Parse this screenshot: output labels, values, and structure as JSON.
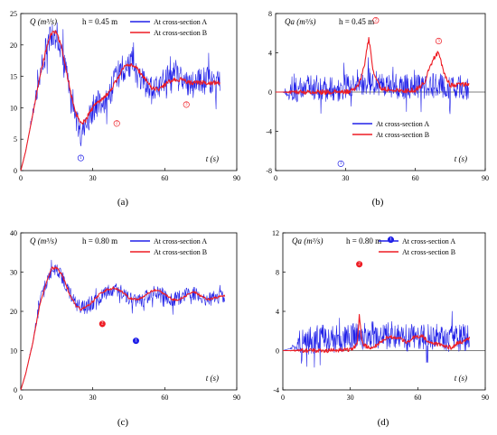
{
  "colors": {
    "A": "#2020e8",
    "B": "#ee1c24",
    "axis": "#000000"
  },
  "chart_data": [
    {
      "panel": "(a)",
      "type": "line",
      "ylabel": "Q (m³/s)",
      "xlabel": "t (s)",
      "annotation": "h = 0.45 m",
      "xlim": [
        0,
        90
      ],
      "ylim": [
        0,
        25
      ],
      "xticks": [
        "0",
        "30",
        "60",
        "90"
      ],
      "yticks": [
        "0",
        "5",
        "10",
        "15",
        "20",
        "25"
      ],
      "legend": {
        "position": "top-right",
        "entries": [
          "At cross-section A",
          "At cross-section B"
        ]
      },
      "series": [
        {
          "name": "At cross-section A",
          "noise": 2.2,
          "x": [
            0,
            2,
            5,
            8,
            11,
            13,
            15,
            17,
            19,
            21,
            23,
            25,
            27,
            29,
            31,
            34,
            37,
            40,
            43,
            46,
            49,
            52,
            55,
            58,
            61,
            64,
            67,
            70,
            73,
            76,
            79,
            83
          ],
          "y": [
            0,
            3,
            9,
            15,
            20,
            22,
            21.5,
            19,
            15,
            11,
            8,
            6,
            7.5,
            9,
            10.5,
            11,
            12,
            15,
            16.5,
            16.5,
            15,
            13.5,
            12.5,
            13.5,
            14.5,
            15,
            14.5,
            13.5,
            14,
            14.5,
            14.5,
            14
          ]
        },
        {
          "name": "At cross-section B",
          "noise": 0.35,
          "x": [
            0,
            2,
            5,
            8,
            11,
            13,
            15,
            17,
            19,
            21,
            23,
            25,
            27,
            29,
            31,
            34,
            37,
            40,
            43,
            46,
            49,
            52,
            55,
            58,
            61,
            64,
            67,
            70,
            73,
            76,
            79,
            83
          ],
          "y": [
            0,
            3,
            9,
            15,
            20,
            22,
            22,
            19.5,
            16,
            12,
            9,
            7.5,
            8,
            9.5,
            10.5,
            11.5,
            12.5,
            14.5,
            16.5,
            17,
            16,
            14.5,
            13,
            13,
            14,
            14.5,
            14.5,
            14,
            14,
            14,
            14,
            14
          ]
        }
      ],
      "markers": [
        {
          "label": "1",
          "x": 25,
          "y": 2,
          "color": "A",
          "filled": false
        },
        {
          "label": "2",
          "x": 40,
          "y": 7.5,
          "color": "B",
          "filled": false
        },
        {
          "label": "3",
          "x": 69,
          "y": 10.5,
          "color": "B",
          "filled": false
        }
      ]
    },
    {
      "panel": "(b)",
      "type": "line",
      "ylabel": "Qa (m³/s)",
      "xlabel": "t (s)",
      "annotation": "h = 0.45 m",
      "xlim": [
        0,
        90
      ],
      "ylim": [
        -8,
        8
      ],
      "xticks": [
        "0",
        "30",
        "60",
        "90"
      ],
      "yticks": [
        "-8",
        "-4",
        "0",
        "4",
        "8"
      ],
      "legend": {
        "position": "bottom-center",
        "entries": [
          "At cross-section A",
          "At cross-section B"
        ]
      },
      "series": [
        {
          "name": "At cross-section A",
          "noise": 1.3,
          "x": [
            0,
            5,
            8,
            10,
            15,
            20,
            25,
            27,
            30,
            35,
            40,
            45,
            50,
            55,
            60,
            65,
            70,
            75,
            80,
            83
          ],
          "y": [
            0,
            0,
            0.1,
            0.4,
            0.5,
            0.4,
            0.2,
            0.2,
            0.6,
            1.0,
            1.0,
            0.8,
            0.6,
            0.5,
            0.5,
            0.6,
            0.7,
            0.6,
            0.5,
            0.4
          ]
        },
        {
          "name": "At cross-section B",
          "noise": 0.25,
          "x": [
            0,
            10,
            20,
            30,
            34,
            36,
            38,
            40,
            42,
            45,
            50,
            55,
            60,
            64,
            66,
            68,
            70,
            72,
            75,
            80,
            83
          ],
          "y": [
            0,
            0,
            0,
            0,
            0.2,
            1.0,
            2.5,
            5.5,
            2.0,
            0.4,
            0.2,
            0.1,
            0.2,
            1.0,
            2.5,
            3.5,
            4.2,
            2.0,
            0.7,
            0.8,
            0.8
          ]
        }
      ],
      "markers": [
        {
          "label": "1",
          "x": 28,
          "y": -7.3,
          "color": "A",
          "filled": false
        },
        {
          "label": "2",
          "x": 43,
          "y": 7.3,
          "color": "B",
          "filled": false
        },
        {
          "label": "3",
          "x": 70,
          "y": 5.2,
          "color": "B",
          "filled": false
        }
      ]
    },
    {
      "panel": "(c)",
      "type": "line",
      "ylabel": "Q (m³/s)",
      "xlabel": "t (s)",
      "annotation": "h = 0.80 m",
      "xlim": [
        0,
        90
      ],
      "ylim": [
        0,
        40
      ],
      "xticks": [
        "0",
        "30",
        "60",
        "90"
      ],
      "yticks": [
        "0",
        "10",
        "20",
        "30",
        "40"
      ],
      "legend": {
        "position": "top-right",
        "entries": [
          "At cross-section A",
          "At cross-section B"
        ]
      },
      "series": [
        {
          "name": "At cross-section A",
          "noise": 1.8,
          "x": [
            0,
            2,
            5,
            8,
            11,
            13,
            15,
            17,
            19,
            21,
            23,
            25,
            27,
            30,
            33,
            36,
            39,
            42,
            45,
            48,
            51,
            54,
            57,
            60,
            63,
            66,
            69,
            72,
            75,
            78,
            81,
            85
          ],
          "y": [
            0,
            4,
            12,
            22,
            28,
            30.5,
            30.5,
            29,
            26.5,
            24,
            22,
            21,
            21,
            22,
            23.5,
            25,
            25.5,
            25,
            23.5,
            22.5,
            23,
            24.5,
            25,
            24,
            23,
            23.5,
            24.5,
            24.5,
            23.5,
            23,
            23.5,
            24
          ]
        },
        {
          "name": "At cross-section B",
          "noise": 0.3,
          "x": [
            0,
            2,
            5,
            8,
            11,
            13,
            15,
            17,
            19,
            21,
            23,
            25,
            27,
            30,
            33,
            36,
            39,
            42,
            45,
            48,
            51,
            54,
            57,
            60,
            63,
            66,
            69,
            72,
            75,
            78,
            81,
            85
          ],
          "y": [
            0,
            4,
            12,
            22,
            28,
            31,
            31,
            29.5,
            26.5,
            23.5,
            21.5,
            20.5,
            21,
            22.5,
            24.5,
            25.5,
            26,
            25,
            23.5,
            23,
            23.5,
            25,
            25.5,
            24.5,
            23,
            23,
            24,
            25,
            24,
            23,
            23.5,
            24
          ]
        }
      ],
      "markers": [
        {
          "label": "2",
          "x": 34,
          "y": 16.8,
          "color": "B",
          "filled": true
        },
        {
          "label": "1",
          "x": 48,
          "y": 12.5,
          "color": "A",
          "filled": true
        }
      ]
    },
    {
      "panel": "(d)",
      "type": "line",
      "ylabel": "Qa (m³/s)",
      "xlabel": "t (s)",
      "annotation": "h = 0.80 m",
      "xlim": [
        0,
        90
      ],
      "ylim": [
        -4,
        12
      ],
      "xticks": [
        "0",
        "30",
        "60",
        "90"
      ],
      "yticks": [
        "-4",
        "0",
        "4",
        "8",
        "12"
      ],
      "legend": {
        "position": "top-right",
        "entries": [
          "At cross-section A",
          "At cross-section B"
        ]
      },
      "series": [
        {
          "name": "At cross-section A",
          "noise": 1.4,
          "x": [
            0,
            3,
            8,
            12,
            18,
            22,
            27,
            30,
            35,
            40,
            45,
            50,
            55,
            60,
            65,
            70,
            75,
            80,
            83
          ],
          "y": [
            0,
            0.2,
            0.8,
            1.0,
            1.3,
            1.2,
            1.2,
            1.5,
            1.5,
            1.6,
            1.5,
            1.4,
            1.3,
            1.4,
            1.4,
            1.3,
            1.2,
            1.3,
            1.2
          ]
        },
        {
          "name": "At cross-section B",
          "noise": 0.2,
          "x": [
            0,
            10,
            20,
            30,
            33,
            34,
            35,
            36,
            38,
            40,
            42,
            45,
            48,
            52,
            55,
            58,
            62,
            65,
            70,
            75,
            78,
            83
          ],
          "y": [
            0,
            0,
            0,
            0.1,
            0.6,
            3.5,
            1.2,
            0.6,
            0.3,
            0.4,
            0.6,
            1.2,
            1.4,
            1.3,
            0.8,
            1.3,
            1.5,
            0.8,
            0.6,
            0.3,
            0.8,
            1.2
          ]
        }
      ],
      "markers": [
        {
          "label": "2",
          "x": 34,
          "y": 8.8,
          "color": "B",
          "filled": true
        },
        {
          "label": "1",
          "x": 48,
          "y": 11.3,
          "color": "A",
          "filled": true
        }
      ]
    }
  ]
}
